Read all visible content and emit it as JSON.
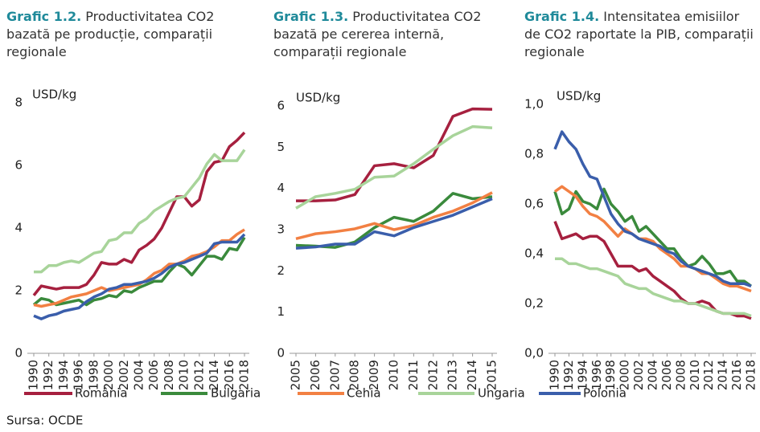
{
  "chart_data": [
    {
      "type": "line",
      "title_label": "Grafic 1.2.",
      "title": "Productivitatea CO2 bazată pe producție, comparații regionale",
      "y_label": "USD/kg",
      "x": [
        1990,
        1991,
        1992,
        1993,
        1994,
        1995,
        1996,
        1997,
        1998,
        1999,
        2000,
        2001,
        2002,
        2003,
        2004,
        2005,
        2006,
        2007,
        2008,
        2009,
        2010,
        2011,
        2012,
        2013,
        2014,
        2015,
        2016,
        2017,
        2018
      ],
      "xlim": [
        1990,
        2018
      ],
      "xticks": [
        1990,
        1992,
        1994,
        1996,
        1998,
        2000,
        2002,
        2004,
        2006,
        2008,
        2010,
        2012,
        2014,
        2016,
        2018
      ],
      "ylim": [
        0,
        8
      ],
      "yticks": [
        0,
        2,
        4,
        6,
        8
      ],
      "series": [
        {
          "name": "România",
          "color": "#a6203f",
          "values": [
            1.85,
            2.15,
            2.1,
            2.05,
            2.1,
            2.1,
            2.1,
            2.2,
            2.5,
            2.9,
            2.85,
            2.85,
            3.0,
            2.9,
            3.3,
            3.45,
            3.65,
            4.0,
            4.5,
            5.0,
            5.0,
            4.7,
            4.9,
            5.8,
            6.1,
            6.15,
            6.6,
            6.8,
            7.05
          ]
        },
        {
          "name": "Bulgaria",
          "color": "#3a8a3c",
          "values": [
            1.55,
            1.75,
            1.7,
            1.55,
            1.6,
            1.65,
            1.7,
            1.55,
            1.7,
            1.75,
            1.85,
            1.8,
            2.0,
            1.95,
            2.1,
            2.2,
            2.3,
            2.3,
            2.6,
            2.85,
            2.75,
            2.5,
            2.8,
            3.1,
            3.1,
            3.0,
            3.35,
            3.3,
            3.7
          ]
        },
        {
          "name": "Cehia",
          "color": "#f28043",
          "values": [
            1.55,
            1.5,
            1.55,
            1.6,
            1.7,
            1.8,
            1.85,
            1.9,
            2.0,
            2.1,
            2.0,
            2.05,
            2.1,
            2.15,
            2.2,
            2.35,
            2.55,
            2.65,
            2.85,
            2.85,
            2.95,
            3.1,
            3.15,
            3.25,
            3.4,
            3.6,
            3.6,
            3.8,
            3.95
          ]
        },
        {
          "name": "Ungaria",
          "color": "#a8d49a",
          "values": [
            2.6,
            2.6,
            2.8,
            2.8,
            2.9,
            2.95,
            2.9,
            3.05,
            3.2,
            3.25,
            3.6,
            3.65,
            3.85,
            3.85,
            4.15,
            4.3,
            4.55,
            4.7,
            4.85,
            4.95,
            5.0,
            5.3,
            5.6,
            6.05,
            6.35,
            6.15,
            6.15,
            6.15,
            6.5
          ]
        },
        {
          "name": "Polonia",
          "color": "#3a5eab",
          "values": [
            1.2,
            1.1,
            1.2,
            1.25,
            1.35,
            1.4,
            1.45,
            1.65,
            1.8,
            1.9,
            2.05,
            2.1,
            2.2,
            2.2,
            2.25,
            2.3,
            2.4,
            2.55,
            2.75,
            2.85,
            2.9,
            3.0,
            3.1,
            3.2,
            3.5,
            3.55,
            3.55,
            3.55,
            3.8
          ]
        }
      ]
    },
    {
      "type": "line",
      "title_label": "Grafic 1.3.",
      "title": "Productivitatea CO2 bazată pe cererea internă, comparații regionale",
      "y_label": "USD/kg",
      "x": [
        2005,
        2006,
        2007,
        2008,
        2009,
        2010,
        2011,
        2012,
        2013,
        2014,
        2015
      ],
      "xlim": [
        2005,
        2015
      ],
      "xticks": [
        2005,
        2006,
        2007,
        2008,
        2009,
        2010,
        2011,
        2012,
        2013,
        2014,
        2015
      ],
      "ylim": [
        0,
        6
      ],
      "yticks": [
        0,
        1,
        2,
        3,
        4,
        5,
        6
      ],
      "series": [
        {
          "name": "România",
          "color": "#a6203f",
          "values": [
            3.7,
            3.7,
            3.72,
            3.85,
            4.55,
            4.6,
            4.5,
            4.8,
            5.75,
            5.93,
            5.92
          ]
        },
        {
          "name": "Bulgaria",
          "color": "#3a8a3c",
          "values": [
            2.62,
            2.6,
            2.57,
            2.7,
            3.05,
            3.3,
            3.2,
            3.45,
            3.88,
            3.75,
            3.8
          ]
        },
        {
          "name": "Cehia",
          "color": "#f28043",
          "values": [
            2.78,
            2.9,
            2.95,
            3.02,
            3.15,
            3.0,
            3.1,
            3.3,
            3.45,
            3.65,
            3.9
          ]
        },
        {
          "name": "Ungaria",
          "color": "#a8d49a",
          "values": [
            3.52,
            3.8,
            3.88,
            3.98,
            4.27,
            4.3,
            4.6,
            4.95,
            5.28,
            5.5,
            5.47
          ]
        },
        {
          "name": "Polonia",
          "color": "#3a5eab",
          "values": [
            2.55,
            2.58,
            2.65,
            2.65,
            2.95,
            2.85,
            3.05,
            3.2,
            3.35,
            3.55,
            3.75
          ]
        }
      ]
    },
    {
      "type": "line",
      "title_label": "Grafic 1.4.",
      "title": "Intensitatea emisiilor de CO2 raportate la PIB, comparații regionale",
      "y_label": "USD/kg",
      "x": [
        1990,
        1991,
        1992,
        1993,
        1994,
        1995,
        1996,
        1997,
        1998,
        1999,
        2000,
        2001,
        2002,
        2003,
        2004,
        2005,
        2006,
        2007,
        2008,
        2009,
        2010,
        2011,
        2012,
        2013,
        2014,
        2015,
        2016,
        2017,
        2018
      ],
      "xlim": [
        1990,
        2018
      ],
      "xticks": [
        1990,
        1992,
        1994,
        1996,
        1998,
        2000,
        2002,
        2004,
        2006,
        2008,
        2010,
        2012,
        2014,
        2016,
        2018
      ],
      "ylim": [
        0,
        1
      ],
      "yticks": [
        {
          "value": 0,
          "label": "0,0"
        },
        {
          "value": 0.2,
          "label": "0,2"
        },
        {
          "value": 0.4,
          "label": "0,4"
        },
        {
          "value": 0.6,
          "label": "0,6"
        },
        {
          "value": 0.8,
          "label": "0,8"
        },
        {
          "value": 1,
          "label": "1,0"
        }
      ],
      "series": [
        {
          "name": "România",
          "color": "#a6203f",
          "values": [
            0.53,
            0.46,
            0.47,
            0.48,
            0.46,
            0.47,
            0.47,
            0.45,
            0.4,
            0.35,
            0.35,
            0.35,
            0.33,
            0.34,
            0.31,
            0.29,
            0.27,
            0.25,
            0.22,
            0.2,
            0.2,
            0.21,
            0.2,
            0.17,
            0.16,
            0.16,
            0.15,
            0.15,
            0.14
          ]
        },
        {
          "name": "Bulgaria",
          "color": "#3a8a3c",
          "values": [
            0.65,
            0.56,
            0.58,
            0.65,
            0.61,
            0.6,
            0.58,
            0.66,
            0.6,
            0.57,
            0.53,
            0.55,
            0.49,
            0.51,
            0.48,
            0.45,
            0.42,
            0.42,
            0.38,
            0.35,
            0.36,
            0.39,
            0.36,
            0.32,
            0.32,
            0.33,
            0.29,
            0.29,
            0.27
          ]
        },
        {
          "name": "Cehia",
          "color": "#f28043",
          "values": [
            0.65,
            0.67,
            0.65,
            0.63,
            0.59,
            0.56,
            0.55,
            0.53,
            0.5,
            0.47,
            0.5,
            0.48,
            0.46,
            0.46,
            0.45,
            0.42,
            0.4,
            0.38,
            0.35,
            0.35,
            0.34,
            0.32,
            0.32,
            0.3,
            0.28,
            0.27,
            0.27,
            0.26,
            0.25
          ]
        },
        {
          "name": "Ungaria",
          "color": "#a8d49a",
          "values": [
            0.38,
            0.38,
            0.36,
            0.36,
            0.35,
            0.34,
            0.34,
            0.33,
            0.32,
            0.31,
            0.28,
            0.27,
            0.26,
            0.26,
            0.24,
            0.23,
            0.22,
            0.21,
            0.21,
            0.2,
            0.2,
            0.19,
            0.18,
            0.17,
            0.16,
            0.16,
            0.16,
            0.16,
            0.15
          ]
        },
        {
          "name": "Polonia",
          "color": "#3a5eab",
          "values": [
            0.82,
            0.89,
            0.85,
            0.82,
            0.76,
            0.71,
            0.7,
            0.63,
            0.56,
            0.52,
            0.49,
            0.48,
            0.46,
            0.45,
            0.44,
            0.43,
            0.41,
            0.4,
            0.37,
            0.35,
            0.34,
            0.33,
            0.32,
            0.31,
            0.29,
            0.28,
            0.28,
            0.28,
            0.27
          ]
        }
      ]
    }
  ],
  "source": "Sursa: OCDE"
}
